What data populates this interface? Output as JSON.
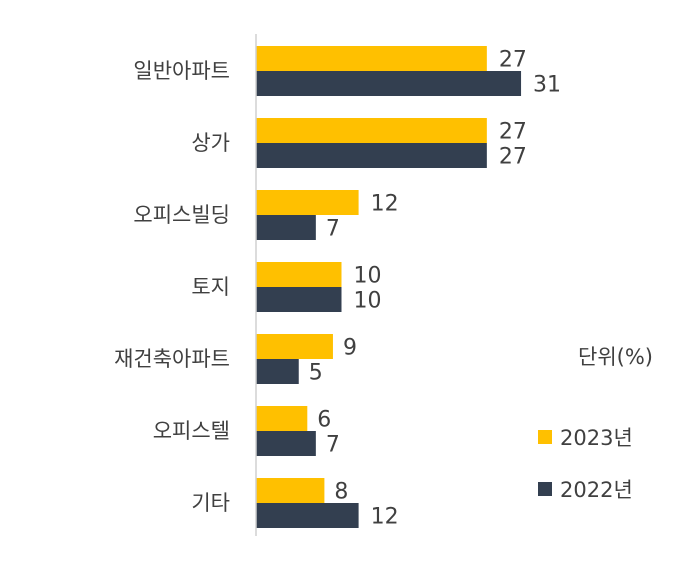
{
  "chart_data": {
    "type": "bar",
    "orientation": "horizontal",
    "categories": [
      "일반아파트",
      "상가",
      "오피스빌딩",
      "토지",
      "재건축아파트",
      "오피스텔",
      "기타"
    ],
    "series": [
      {
        "name": "2023년",
        "color": "#FFC000",
        "values": [
          27,
          27,
          12,
          10,
          9,
          6,
          8
        ]
      },
      {
        "name": "2022년",
        "color": "#333F50",
        "values": [
          31,
          27,
          7,
          10,
          5,
          7,
          12
        ]
      }
    ],
    "unit_label": "단위(%)",
    "xlim": [
      0,
      40
    ],
    "grid": false,
    "legend": "right"
  }
}
